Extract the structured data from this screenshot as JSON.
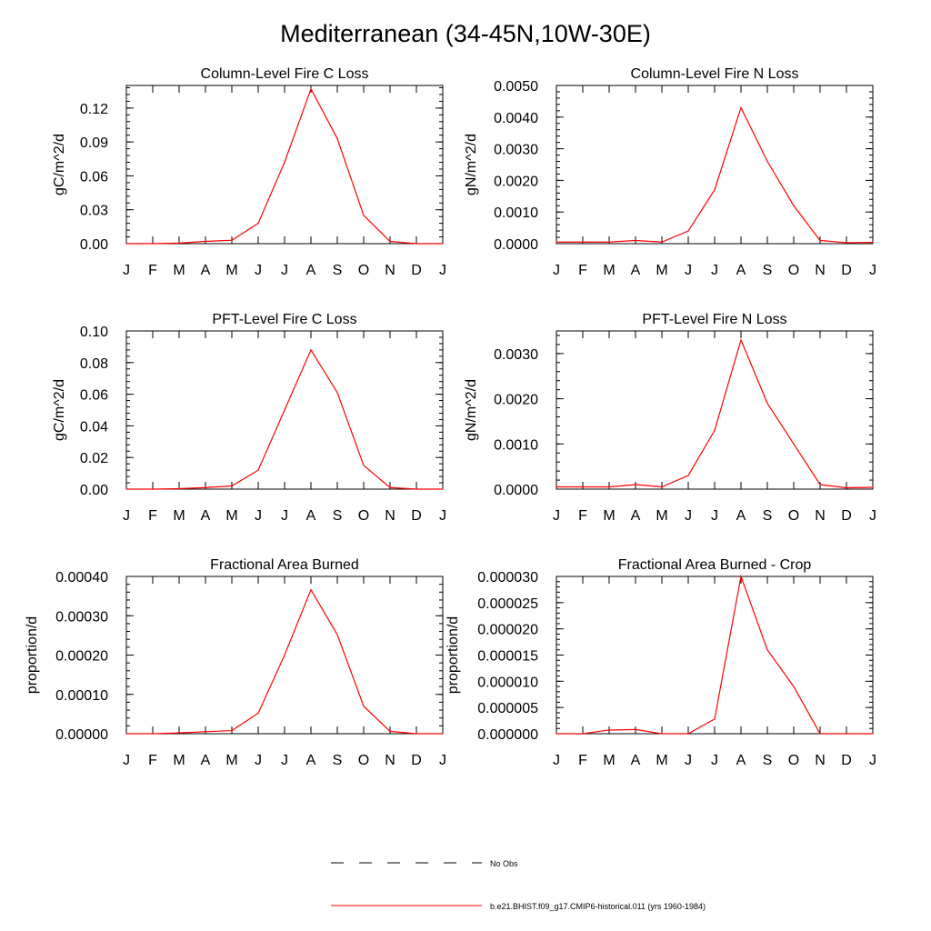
{
  "title": "Mediterranean (34-45N,10W-30E)",
  "legend": {
    "placement": "bottom-center",
    "entries": [
      {
        "label": "No Obs",
        "style": "dashed",
        "color": "#000000"
      },
      {
        "label": "b.e21.BHIST.f09_g17.CMIP6-historical.011 (yrs 1960-1984)",
        "style": "solid",
        "color": "#ff0000"
      }
    ]
  },
  "chart_data": [
    {
      "type": "line",
      "title": "Column-Level Fire C Loss",
      "ylabel": "gC/m^2/d",
      "x": [
        "J",
        "F",
        "M",
        "A",
        "M",
        "J",
        "J",
        "A",
        "S",
        "O",
        "N",
        "D",
        "J"
      ],
      "ylim": [
        0,
        0.14
      ],
      "yticks": [
        0.0,
        0.03,
        0.06,
        0.09,
        0.12
      ],
      "ytick_labels": [
        "0.00",
        "0.03",
        "0.06",
        "0.09",
        "0.12"
      ],
      "series": [
        {
          "color": "#ff0000",
          "values": [
            0.0,
            0.0,
            0.0005,
            0.002,
            0.003,
            0.018,
            0.072,
            0.137,
            0.093,
            0.025,
            0.002,
            0.0,
            0.0
          ]
        }
      ]
    },
    {
      "type": "line",
      "title": "Column-Level Fire N Loss",
      "ylabel": "gN/m^2/d",
      "x": [
        "J",
        "F",
        "M",
        "A",
        "M",
        "J",
        "J",
        "A",
        "S",
        "O",
        "N",
        "D",
        "J"
      ],
      "ylim": [
        0,
        0.005
      ],
      "yticks": [
        0.0,
        0.001,
        0.002,
        0.003,
        0.004,
        0.005
      ],
      "ytick_labels": [
        "0.0000",
        "0.0010",
        "0.0020",
        "0.0030",
        "0.0040",
        "0.0050"
      ],
      "series": [
        {
          "color": "#ff0000",
          "values": [
            5e-05,
            5e-05,
            5e-05,
            0.0001,
            5e-05,
            0.0004,
            0.0017,
            0.0043,
            0.0026,
            0.0012,
            0.0001,
            3e-05,
            4e-05
          ]
        }
      ]
    },
    {
      "type": "line",
      "title": "PFT-Level Fire C Loss",
      "ylabel": "gC/m^2/d",
      "x": [
        "J",
        "F",
        "M",
        "A",
        "M",
        "J",
        "J",
        "A",
        "S",
        "O",
        "N",
        "D",
        "J"
      ],
      "ylim": [
        0,
        0.1
      ],
      "yticks": [
        0.0,
        0.02,
        0.04,
        0.06,
        0.08,
        0.1
      ],
      "ytick_labels": [
        "0.00",
        "0.02",
        "0.04",
        "0.06",
        "0.08",
        "0.10"
      ],
      "series": [
        {
          "color": "#ff0000",
          "values": [
            0.0,
            0.0,
            0.0003,
            0.001,
            0.002,
            0.012,
            0.05,
            0.088,
            0.061,
            0.015,
            0.001,
            0.0,
            0.0
          ]
        }
      ]
    },
    {
      "type": "line",
      "title": "PFT-Level Fire N Loss",
      "ylabel": "gN/m^2/d",
      "x": [
        "J",
        "F",
        "M",
        "A",
        "M",
        "J",
        "J",
        "A",
        "S",
        "O",
        "N",
        "D",
        "J"
      ],
      "ylim": [
        0,
        0.0035
      ],
      "yticks": [
        0.0,
        0.001,
        0.002,
        0.003
      ],
      "ytick_labels": [
        "0.0000",
        "0.0010",
        "0.0020",
        "0.0030"
      ],
      "series": [
        {
          "color": "#ff0000",
          "values": [
            5e-05,
            5e-05,
            5e-05,
            0.0001,
            5e-05,
            0.0003,
            0.0013,
            0.0033,
            0.0019,
            0.001,
            0.0001,
            3e-05,
            4e-05
          ]
        }
      ]
    },
    {
      "type": "line",
      "title": "Fractional Area Burned",
      "ylabel": "proportion/d",
      "x": [
        "J",
        "F",
        "M",
        "A",
        "M",
        "J",
        "J",
        "A",
        "S",
        "O",
        "N",
        "D",
        "J"
      ],
      "ylim": [
        0,
        0.0004
      ],
      "yticks": [
        0.0,
        0.0001,
        0.0002,
        0.0003,
        0.0004
      ],
      "ytick_labels": [
        "0.00000",
        "0.00010",
        "0.00020",
        "0.00030",
        "0.00040"
      ],
      "series": [
        {
          "color": "#ff0000",
          "values": [
            0.0,
            0.0,
            2e-06,
            5e-06,
            8e-06,
            5.2e-05,
            0.0002,
            0.000366,
            0.000252,
            7e-05,
            6e-06,
            0.0,
            0.0
          ]
        }
      ]
    },
    {
      "type": "line",
      "title": "Fractional Area Burned - Crop",
      "ylabel": "proportion/d",
      "x": [
        "J",
        "F",
        "M",
        "A",
        "M",
        "J",
        "J",
        "A",
        "S",
        "O",
        "N",
        "D",
        "J"
      ],
      "ylim": [
        0,
        3e-05
      ],
      "yticks": [
        0.0,
        5e-06,
        1e-05,
        1.5e-05,
        2e-05,
        2.5e-05,
        3e-05
      ],
      "ytick_labels": [
        "0.000000",
        "0.000005",
        "0.000010",
        "0.000015",
        "0.000020",
        "0.000025",
        "0.000030"
      ],
      "series": [
        {
          "color": "#ff0000",
          "values": [
            0.0,
            0.0,
            7e-07,
            8e-07,
            0.0,
            0.0,
            2.8e-06,
            3e-05,
            1.6e-05,
            9e-06,
            0.0,
            0.0,
            0.0
          ]
        }
      ]
    }
  ]
}
